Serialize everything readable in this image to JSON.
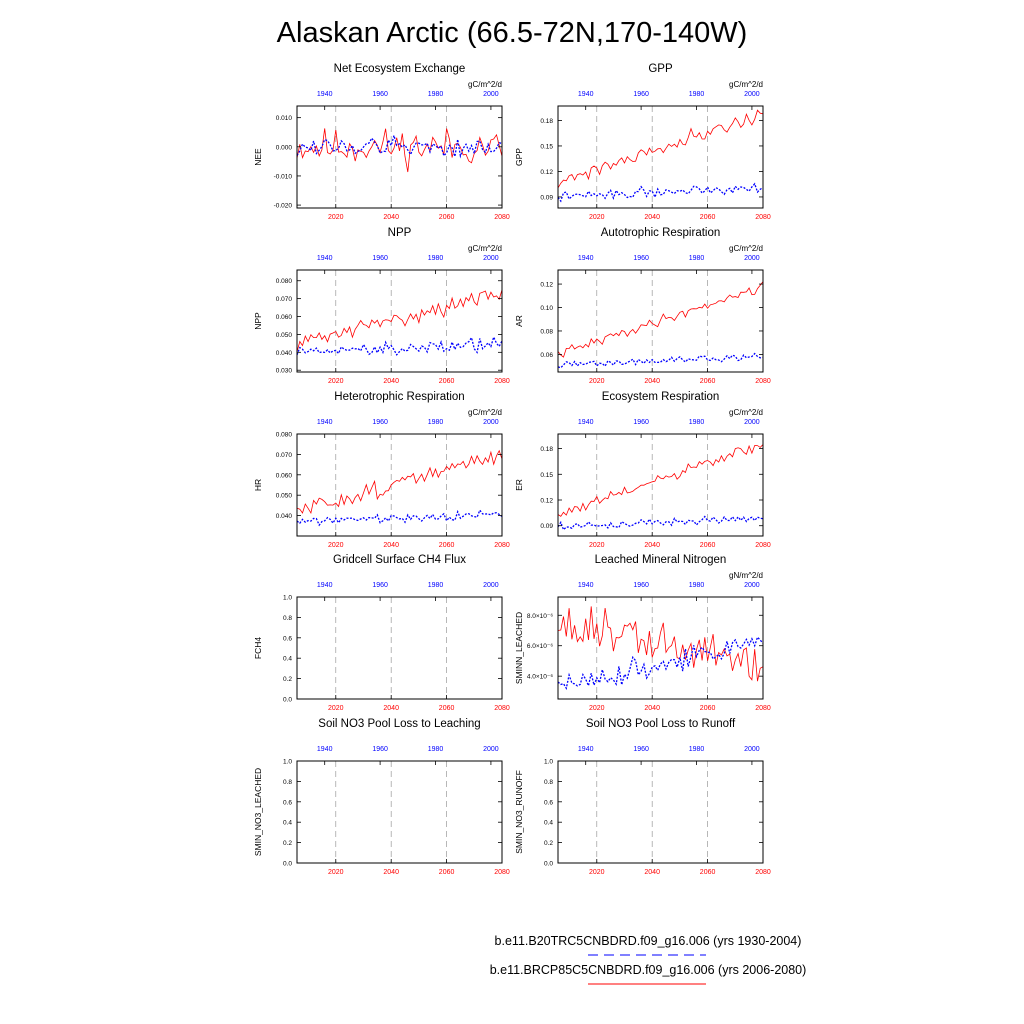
{
  "figure": {
    "title": "Alaskan Arctic (66.5-72N,170-140W)",
    "legend": [
      {
        "label": "b.e11.B20TRC5CNBDRD.f09_g16.006 (yrs 1930-2004)",
        "color": "#0000ff",
        "dash": "dashed"
      },
      {
        "label": "b.e11.BRCP85C5CNBDRD.f09_g16.006 (yrs 2006-2080)",
        "color": "#ff0000",
        "dash": "solid"
      }
    ],
    "colors": {
      "historical": "#0000ff",
      "future": "#ff0000",
      "gridline": "#999999"
    }
  },
  "axes": {
    "bottom_range": [
      2006,
      2080
    ],
    "bottom_ticks": [
      "2020",
      "2040",
      "2060",
      "2080"
    ],
    "bottom_tick_values": [
      2020,
      2040,
      2060,
      2080
    ],
    "top_range": [
      1930,
      2004
    ],
    "top_ticks": [
      "1940",
      "1960",
      "1980",
      "2000"
    ],
    "top_tick_values": [
      1940,
      1960,
      1980,
      2000
    ]
  },
  "chart_data": [
    {
      "type": "line",
      "title": "Net Ecosystem Exchange",
      "units": "gC/m^2/d",
      "ylabel": "NEE",
      "ylim": [
        -0.021,
        0.014
      ],
      "yticks": [
        0.01,
        0.0,
        -0.01,
        -0.02
      ],
      "yticklabels": [
        "0.010",
        "0.000",
        "-0.010",
        "-0.020"
      ],
      "series": [
        {
          "name": "b.e11.BRCP85C5CNBDRD.f09_g16.006 (yrs 2006-2080)",
          "role": "future",
          "kind": "noise",
          "mean": 0.0,
          "trend": 0.0,
          "noise": 0.0045,
          "seed": 11
        },
        {
          "name": "b.e11.B20TRC5CNBDRD.f09_g16.006 (yrs 1930-2004)",
          "role": "historical",
          "kind": "noise",
          "mean": 0.0,
          "trend": 0.0,
          "noise": 0.0025,
          "seed": 12
        }
      ]
    },
    {
      "type": "line",
      "title": "GPP",
      "units": "gC/m^2/d",
      "ylabel": "GPP",
      "ylim": [
        0.077,
        0.197
      ],
      "yticks": [
        0.09,
        0.12,
        0.15,
        0.18
      ],
      "yticklabels": [
        "0.09",
        "0.12",
        "0.15",
        "0.18"
      ],
      "series": [
        {
          "name": "b.e11.BRCP85C5CNBDRD.f09_g16.006 (yrs 2006-2080)",
          "role": "future",
          "kind": "noise",
          "mean": 0.108,
          "trend": 0.08,
          "noise": 0.006,
          "seed": 21
        },
        {
          "name": "b.e11.B20TRC5CNBDRD.f09_g16.006 (yrs 1930-2004)",
          "role": "historical",
          "kind": "noise",
          "mean": 0.09,
          "trend": 0.012,
          "noise": 0.004,
          "seed": 22
        }
      ]
    },
    {
      "type": "line",
      "title": "NPP",
      "units": "gC/m^2/d",
      "ylabel": "NPP",
      "ylim": [
        0.029,
        0.086
      ],
      "yticks": [
        0.03,
        0.04,
        0.05,
        0.06,
        0.07,
        0.08
      ],
      "yticklabels": [
        "0.030",
        "0.040",
        "0.050",
        "0.060",
        "0.070",
        "0.080"
      ],
      "series": [
        {
          "name": "b.e11.BRCP85C5CNBDRD.f09_g16.006 (yrs 2006-2080)",
          "role": "future",
          "kind": "noise",
          "mean": 0.045,
          "trend": 0.028,
          "noise": 0.003,
          "seed": 31
        },
        {
          "name": "b.e11.B20TRC5CNBDRD.f09_g16.006 (yrs 1930-2004)",
          "role": "historical",
          "kind": "noise",
          "mean": 0.04,
          "trend": 0.005,
          "noise": 0.003,
          "seed": 32
        }
      ]
    },
    {
      "type": "line",
      "title": "Autotrophic Respiration",
      "units": "gC/m^2/d",
      "ylabel": "AR",
      "ylim": [
        0.045,
        0.132
      ],
      "yticks": [
        0.06,
        0.08,
        0.1,
        0.12
      ],
      "yticklabels": [
        "0.06",
        "0.08",
        "0.10",
        "0.12"
      ],
      "series": [
        {
          "name": "b.e11.BRCP85C5CNBDRD.f09_g16.006 (yrs 2006-2080)",
          "role": "future",
          "kind": "noise",
          "mean": 0.06,
          "trend": 0.058,
          "noise": 0.003,
          "seed": 41
        },
        {
          "name": "b.e11.B20TRC5CNBDRD.f09_g16.006 (yrs 1930-2004)",
          "role": "historical",
          "kind": "noise",
          "mean": 0.051,
          "trend": 0.007,
          "noise": 0.002,
          "seed": 42
        }
      ]
    },
    {
      "type": "line",
      "title": "Heterotrophic Respiration",
      "units": "gC/m^2/d",
      "ylabel": "HR",
      "ylim": [
        0.03,
        0.08
      ],
      "yticks": [
        0.04,
        0.05,
        0.06,
        0.07,
        0.08
      ],
      "yticklabels": [
        "0.040",
        "0.050",
        "0.060",
        "0.070",
        "0.080"
      ],
      "series": [
        {
          "name": "b.e11.BRCP85C5CNBDRD.f09_g16.006 (yrs 2006-2080)",
          "role": "future",
          "kind": "noise",
          "mean": 0.042,
          "trend": 0.028,
          "noise": 0.003,
          "seed": 51
        },
        {
          "name": "b.e11.B20TRC5CNBDRD.f09_g16.006 (yrs 1930-2004)",
          "role": "historical",
          "kind": "noise",
          "mean": 0.037,
          "trend": 0.004,
          "noise": 0.0015,
          "seed": 52
        }
      ]
    },
    {
      "type": "line",
      "title": "Ecosystem Respiration",
      "units": "gC/m^2/d",
      "ylabel": "ER",
      "ylim": [
        0.078,
        0.197
      ],
      "yticks": [
        0.09,
        0.12,
        0.15,
        0.18
      ],
      "yticklabels": [
        "0.09",
        "0.12",
        "0.15",
        "0.18"
      ],
      "series": [
        {
          "name": "b.e11.BRCP85C5CNBDRD.f09_g16.006 (yrs 2006-2080)",
          "role": "future",
          "kind": "noise",
          "mean": 0.102,
          "trend": 0.083,
          "noise": 0.005,
          "seed": 61
        },
        {
          "name": "b.e11.B20TRC5CNBDRD.f09_g16.006 (yrs 1930-2004)",
          "role": "historical",
          "kind": "noise",
          "mean": 0.089,
          "trend": 0.01,
          "noise": 0.003,
          "seed": 62
        }
      ]
    },
    {
      "type": "line",
      "title": "Gridcell Surface CH4 Flux",
      "units": "",
      "ylabel": "FCH4",
      "ylim": [
        0,
        1
      ],
      "yticks": [
        0,
        0.2,
        0.4,
        0.6,
        0.8,
        1.0
      ],
      "yticklabels": [
        "0.0",
        "0.2",
        "0.4",
        "0.6",
        "0.8",
        "1.0"
      ],
      "series": []
    },
    {
      "type": "line",
      "title": "Leached Mineral Nitrogen",
      "units": "gN/m^2/d",
      "ylabel": "SMINN_LEACHED",
      "ylim": [
        2.5e-06,
        9.2e-06
      ],
      "yticks": [
        4e-06,
        6e-06,
        8e-06
      ],
      "yticklabels": [
        "4.0×10⁻⁶",
        "6.0×10⁻⁶",
        "8.0×10⁻⁶"
      ],
      "series": [
        {
          "name": "b.e11.BRCP85C5CNBDRD.f09_g16.006 (yrs 2006-2080)",
          "role": "future",
          "kind": "noise",
          "mean": 7.5e-06,
          "trend": -2.8e-06,
          "noise": 1.1e-06,
          "seed": 81
        },
        {
          "name": "b.e11.B20TRC5CNBDRD.f09_g16.006 (yrs 1930-2004)",
          "role": "historical",
          "kind": "noise",
          "mean": 3.3e-06,
          "trend": 3e-06,
          "noise": 5e-07,
          "seed": 82
        }
      ]
    },
    {
      "type": "line",
      "title": "Soil NO3 Pool Loss to Leaching",
      "units": "",
      "ylabel": "SMIN_NO3_LEACHED",
      "ylim": [
        0,
        1
      ],
      "yticks": [
        0,
        0.2,
        0.4,
        0.6,
        0.8,
        1.0
      ],
      "yticklabels": [
        "0.0",
        "0.2",
        "0.4",
        "0.6",
        "0.8",
        "1.0"
      ],
      "series": []
    },
    {
      "type": "line",
      "title": "Soil NO3 Pool Loss to Runoff",
      "units": "",
      "ylabel": "SMIN_NO3_RUNOFF",
      "ylim": [
        0,
        1
      ],
      "yticks": [
        0,
        0.2,
        0.4,
        0.6,
        0.8,
        1.0
      ],
      "yticklabels": [
        "0.0",
        "0.2",
        "0.4",
        "0.6",
        "0.8",
        "1.0"
      ],
      "series": []
    }
  ]
}
